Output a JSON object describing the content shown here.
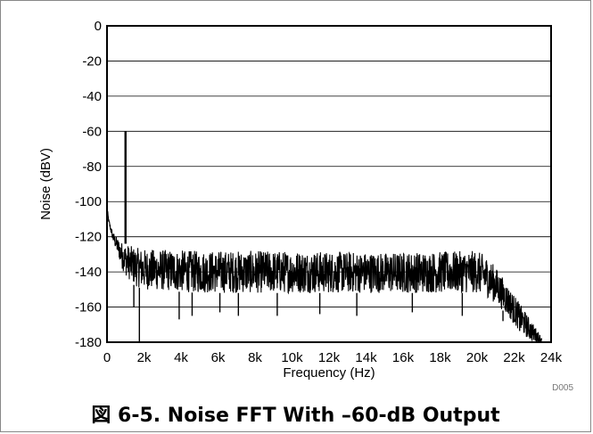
{
  "caption": "図 6-5. Noise FFT With –60-dB Output",
  "figure_code": "D005",
  "chart_data": {
    "type": "line",
    "title": "",
    "xlabel": "Frequency (Hz)",
    "ylabel": "Noise (dBV)",
    "xlim": [
      0,
      24000
    ],
    "ylim": [
      -180,
      0
    ],
    "x_ticks": [
      0,
      2000,
      4000,
      6000,
      8000,
      10000,
      12000,
      14000,
      16000,
      18000,
      20000,
      22000,
      24000
    ],
    "x_tick_labels": [
      "0",
      "2k",
      "4k",
      "6k",
      "8k",
      "10k",
      "12k",
      "14k",
      "16k",
      "18k",
      "20k",
      "22k",
      "24k"
    ],
    "y_ticks": [
      0,
      -20,
      -40,
      -60,
      -80,
      -100,
      -120,
      -140,
      -160,
      -180
    ],
    "y_tick_labels": [
      "0",
      "-20",
      "-40",
      "-60",
      "-80",
      "-100",
      "-120",
      "-140",
      "-160",
      "-180"
    ],
    "grid": true,
    "line_color": "#000000",
    "series": [
      {
        "tone": {
          "x": 1000,
          "y": -60
        },
        "envelope_upper": {
          "x": [
            0,
            100,
            300,
            600,
            800,
            1000,
            1500,
            2000,
            5000,
            10000,
            15000,
            20000,
            20500,
            21000,
            21500,
            22000,
            22500,
            23000,
            23500
          ],
          "y": [
            -103,
            -110,
            -117,
            -121,
            -123,
            -124,
            -126,
            -127,
            -128,
            -128,
            -129,
            -128,
            -131,
            -137,
            -145,
            -153,
            -161,
            -169,
            -177
          ]
        },
        "envelope_lower": {
          "x": [
            0,
            100,
            300,
            600,
            800,
            1000,
            1500,
            2000,
            5000,
            10000,
            15000,
            20000,
            20500,
            21000,
            21500,
            22000,
            22500,
            23000,
            23500
          ],
          "y": [
            -106,
            -113,
            -122,
            -131,
            -138,
            -142,
            -148,
            -150,
            -152,
            -152,
            -152,
            -152,
            -154,
            -158,
            -163,
            -170,
            -176,
            -180,
            -180
          ]
        },
        "dips": [
          {
            "x": 1750,
            "y": -180
          },
          {
            "x": 1450,
            "y": -160
          },
          {
            "x": 3900,
            "y": -167
          },
          {
            "x": 4600,
            "y": -165
          },
          {
            "x": 6100,
            "y": -163
          },
          {
            "x": 7100,
            "y": -165
          },
          {
            "x": 9200,
            "y": -165
          },
          {
            "x": 11500,
            "y": -164
          },
          {
            "x": 13500,
            "y": -165
          },
          {
            "x": 16500,
            "y": -163
          },
          {
            "x": 19200,
            "y": -165
          },
          {
            "x": 21400,
            "y": -168
          },
          {
            "x": 22300,
            "y": -168
          }
        ]
      }
    ]
  }
}
